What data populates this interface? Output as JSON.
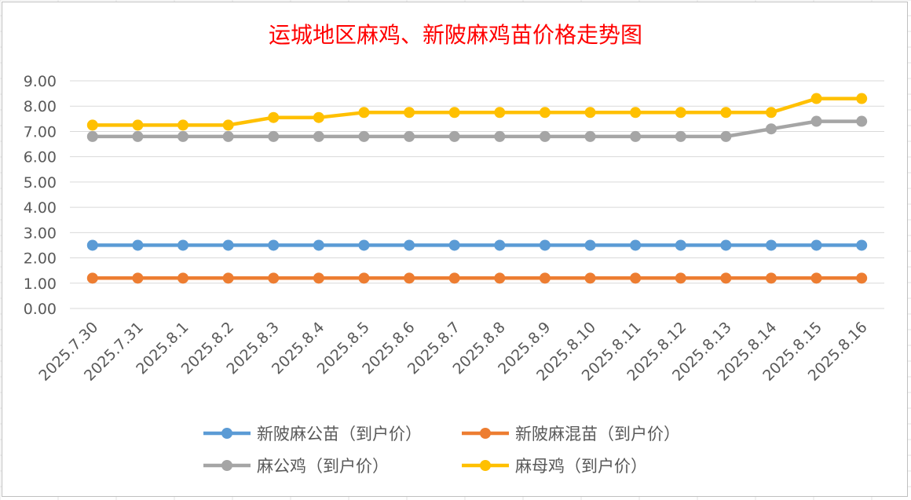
{
  "chart_data": {
    "type": "line",
    "title": "运城地区麻鸡、新陂麻鸡苗价格走势图",
    "xlabel": "",
    "ylabel": "",
    "ylim": [
      0,
      9
    ],
    "y_ticks": [
      "0.00",
      "1.00",
      "2.00",
      "3.00",
      "4.00",
      "5.00",
      "6.00",
      "7.00",
      "8.00",
      "9.00"
    ],
    "grid": true,
    "legend_position": "bottom",
    "categories": [
      "2025.7.30",
      "2025.7.31",
      "2025.8.1",
      "2025.8.2",
      "2025.8.3",
      "2025.8.4",
      "2025.8.5",
      "2025.8.6",
      "2025.8.7",
      "2025.8.8",
      "2025.8.9",
      "2025.8.10",
      "2025.8.11",
      "2025.8.12",
      "2025.8.13",
      "2025.8.14",
      "2025.8.15",
      "2025.8.16"
    ],
    "series": [
      {
        "name": "新陂麻公苗（到户价）",
        "color": "#5B9BD5",
        "values": [
          2.5,
          2.5,
          2.5,
          2.5,
          2.5,
          2.5,
          2.5,
          2.5,
          2.5,
          2.5,
          2.5,
          2.5,
          2.5,
          2.5,
          2.5,
          2.5,
          2.5,
          2.5
        ]
      },
      {
        "name": "新陂麻混苗（到户价）",
        "color": "#ED7D31",
        "values": [
          1.2,
          1.2,
          1.2,
          1.2,
          1.2,
          1.2,
          1.2,
          1.2,
          1.2,
          1.2,
          1.2,
          1.2,
          1.2,
          1.2,
          1.2,
          1.2,
          1.2,
          1.2
        ]
      },
      {
        "name": "麻公鸡（到户价）",
        "color": "#A5A5A5",
        "values": [
          6.8,
          6.8,
          6.8,
          6.8,
          6.8,
          6.8,
          6.8,
          6.8,
          6.8,
          6.8,
          6.8,
          6.8,
          6.8,
          6.8,
          6.8,
          7.1,
          7.4,
          7.4
        ]
      },
      {
        "name": "麻母鸡（到户价）",
        "color": "#FFC000",
        "values": [
          7.25,
          7.25,
          7.25,
          7.25,
          7.55,
          7.55,
          7.75,
          7.75,
          7.75,
          7.75,
          7.75,
          7.75,
          7.75,
          7.75,
          7.75,
          7.75,
          8.3,
          8.3
        ]
      }
    ],
    "colors": {
      "title": "#FF0000",
      "text": "#595959",
      "gridline": "#D9D9D9",
      "border": "#BFBFBF"
    }
  }
}
